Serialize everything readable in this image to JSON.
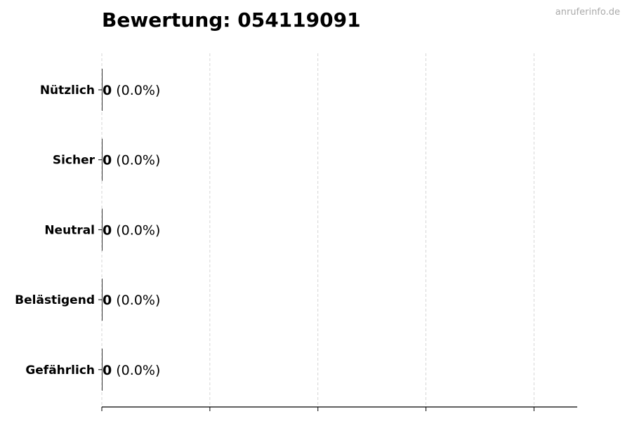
{
  "chart_data": {
    "type": "bar",
    "orientation": "horizontal",
    "title": "Bewertung: 054119091",
    "watermark": "anruferinfo.de",
    "categories": [
      "Nützlich",
      "Sicher",
      "Neutral",
      "Belästigend",
      "Gefährlich"
    ],
    "values": [
      0,
      0,
      0,
      0,
      0
    ],
    "percent_labels": [
      "(0.0%)",
      "(0.0%)",
      "(0.0%)",
      "(0.0%)",
      "(0.0%)"
    ],
    "value_labels": [
      "0",
      "0",
      "0",
      "0",
      "0"
    ],
    "xlim": [
      0,
      4.4
    ],
    "xticks": [
      0,
      1,
      2,
      3,
      4
    ],
    "xtick_labels_shown": false,
    "grid": "vertical dashed",
    "bar_color": "#000000",
    "grid_color": "#cccccc"
  }
}
